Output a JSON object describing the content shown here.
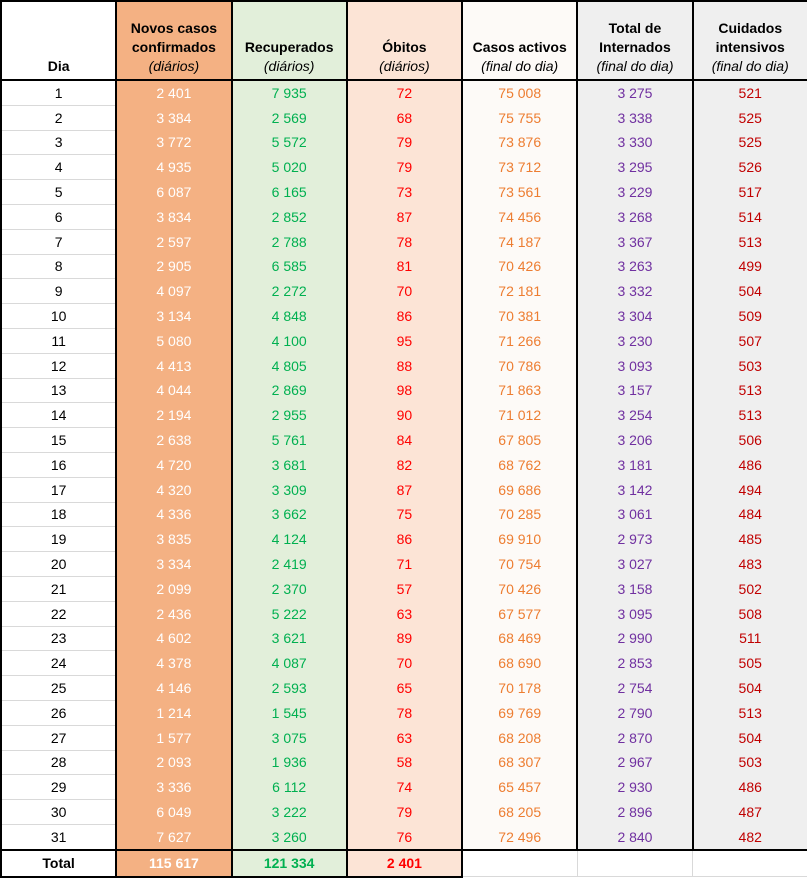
{
  "table": {
    "title": "Daily COVID statistics table (Portuguese)",
    "column_keys": [
      "dia",
      "novos",
      "recuperados",
      "obitos",
      "activos",
      "internados",
      "intensivos"
    ],
    "columns": [
      {
        "key": "dia",
        "lines": [
          "Dia"
        ],
        "sub": ""
      },
      {
        "key": "novos",
        "lines": [
          "Novos casos",
          "confirmados"
        ],
        "sub": "(diários)"
      },
      {
        "key": "recuperados",
        "lines": [
          "Recuperados"
        ],
        "sub": "(diários)"
      },
      {
        "key": "obitos",
        "lines": [
          "Óbitos"
        ],
        "sub": "(diários)"
      },
      {
        "key": "activos",
        "lines": [
          "Casos activos"
        ],
        "sub": "(final do dia)"
      },
      {
        "key": "internados",
        "lines": [
          "Total de",
          "Internados"
        ],
        "sub": "(final do dia)"
      },
      {
        "key": "intensivos",
        "lines": [
          "Cuidados",
          "intensivos"
        ],
        "sub": "(final do dia)"
      }
    ],
    "rows": [
      [
        "1",
        "2 401",
        "7 935",
        "72",
        "75 008",
        "3 275",
        "521"
      ],
      [
        "2",
        "3 384",
        "2 569",
        "68",
        "75 755",
        "3 338",
        "525"
      ],
      [
        "3",
        "3 772",
        "5 572",
        "79",
        "73 876",
        "3 330",
        "525"
      ],
      [
        "4",
        "4 935",
        "5 020",
        "79",
        "73 712",
        "3 295",
        "526"
      ],
      [
        "5",
        "6 087",
        "6 165",
        "73",
        "73 561",
        "3 229",
        "517"
      ],
      [
        "6",
        "3 834",
        "2 852",
        "87",
        "74 456",
        "3 268",
        "514"
      ],
      [
        "7",
        "2 597",
        "2 788",
        "78",
        "74 187",
        "3 367",
        "513"
      ],
      [
        "8",
        "2 905",
        "6 585",
        "81",
        "70 426",
        "3 263",
        "499"
      ],
      [
        "9",
        "4 097",
        "2 272",
        "70",
        "72 181",
        "3 332",
        "504"
      ],
      [
        "10",
        "3 134",
        "4 848",
        "86",
        "70 381",
        "3 304",
        "509"
      ],
      [
        "11",
        "5 080",
        "4 100",
        "95",
        "71 266",
        "3 230",
        "507"
      ],
      [
        "12",
        "4 413",
        "4 805",
        "88",
        "70 786",
        "3 093",
        "503"
      ],
      [
        "13",
        "4 044",
        "2 869",
        "98",
        "71 863",
        "3 157",
        "513"
      ],
      [
        "14",
        "2 194",
        "2 955",
        "90",
        "71 012",
        "3 254",
        "513"
      ],
      [
        "15",
        "2 638",
        "5 761",
        "84",
        "67 805",
        "3 206",
        "506"
      ],
      [
        "16",
        "4 720",
        "3 681",
        "82",
        "68 762",
        "3 181",
        "486"
      ],
      [
        "17",
        "4 320",
        "3 309",
        "87",
        "69 686",
        "3 142",
        "494"
      ],
      [
        "18",
        "4 336",
        "3 662",
        "75",
        "70 285",
        "3 061",
        "484"
      ],
      [
        "19",
        "3 835",
        "4 124",
        "86",
        "69 910",
        "2 973",
        "485"
      ],
      [
        "20",
        "3 334",
        "2 419",
        "71",
        "70 754",
        "3 027",
        "483"
      ],
      [
        "21",
        "2 099",
        "2 370",
        "57",
        "70 426",
        "3 158",
        "502"
      ],
      [
        "22",
        "2 436",
        "5 222",
        "63",
        "67 577",
        "3 095",
        "508"
      ],
      [
        "23",
        "4 602",
        "3 621",
        "89",
        "68 469",
        "2 990",
        "511"
      ],
      [
        "24",
        "4 378",
        "4 087",
        "70",
        "68 690",
        "2 853",
        "505"
      ],
      [
        "25",
        "4 146",
        "2 593",
        "65",
        "70 178",
        "2 754",
        "504"
      ],
      [
        "26",
        "1 214",
        "1 545",
        "78",
        "69 769",
        "2 790",
        "513"
      ],
      [
        "27",
        "1 577",
        "3 075",
        "63",
        "68 208",
        "2 870",
        "504"
      ],
      [
        "28",
        "2 093",
        "1 936",
        "58",
        "68 307",
        "2 967",
        "503"
      ],
      [
        "29",
        "3 336",
        "6 112",
        "74",
        "65 457",
        "2 930",
        "486"
      ],
      [
        "30",
        "6 049",
        "3 222",
        "79",
        "68 205",
        "2 896",
        "487"
      ],
      [
        "31",
        "7 627",
        "3 260",
        "76",
        "72 496",
        "2 840",
        "482"
      ]
    ],
    "total": {
      "label": "Total",
      "novos": "115 617",
      "recuperados": "121 334",
      "obitos": "2 401"
    }
  },
  "colors": {
    "novos_bg": "#f4b183",
    "recuperados_bg": "#e2efda",
    "obitos_bg": "#fce4d6",
    "activos_bg": "#fdfaf7",
    "internados_bg": "#efefef",
    "intensivos_bg": "#efefef",
    "novos_text": "#ffffff",
    "recuperados_text": "#00b050",
    "obitos_text": "#ff0000",
    "activos_text": "#ed7d31",
    "internados_text": "#7030a0",
    "intensivos_text": "#c00000",
    "border": "#000000",
    "row_separator": "#d9d9d9"
  }
}
